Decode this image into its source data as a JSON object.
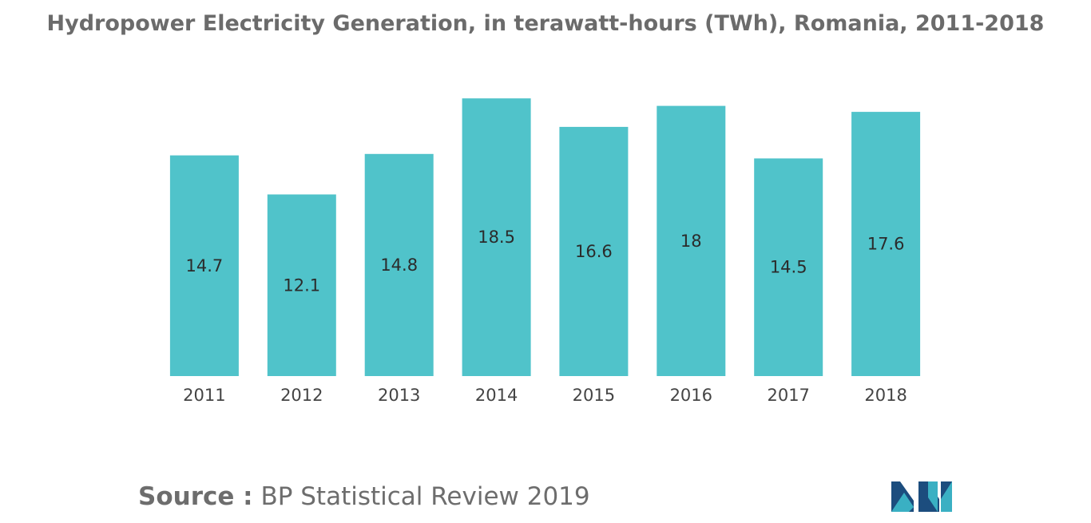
{
  "chart_data": {
    "type": "bar",
    "title": "Hydropower Electricity Generation, in terawatt-hours (TWh), Romania, 2011-2018",
    "categories": [
      "2011",
      "2012",
      "2013",
      "2014",
      "2015",
      "2016",
      "2017",
      "2018"
    ],
    "values": [
      14.7,
      12.1,
      14.8,
      18.5,
      16.6,
      18,
      14.5,
      17.6
    ],
    "value_labels": [
      "14.7",
      "12.1",
      "14.8",
      "18.5",
      "16.6",
      "18",
      "14.5",
      "17.6"
    ],
    "xlabel": "",
    "ylabel": "",
    "ylim": [
      0,
      20
    ],
    "grid": false,
    "legend": "none",
    "bar_color": "#50c3ca"
  },
  "source": {
    "label": "Source :",
    "text": "BP Statistical Review 2019"
  },
  "logo": {
    "icon": "mordor-intelligence-logo-icon",
    "colors": [
      "#1c4d7e",
      "#3ab0c3"
    ]
  }
}
